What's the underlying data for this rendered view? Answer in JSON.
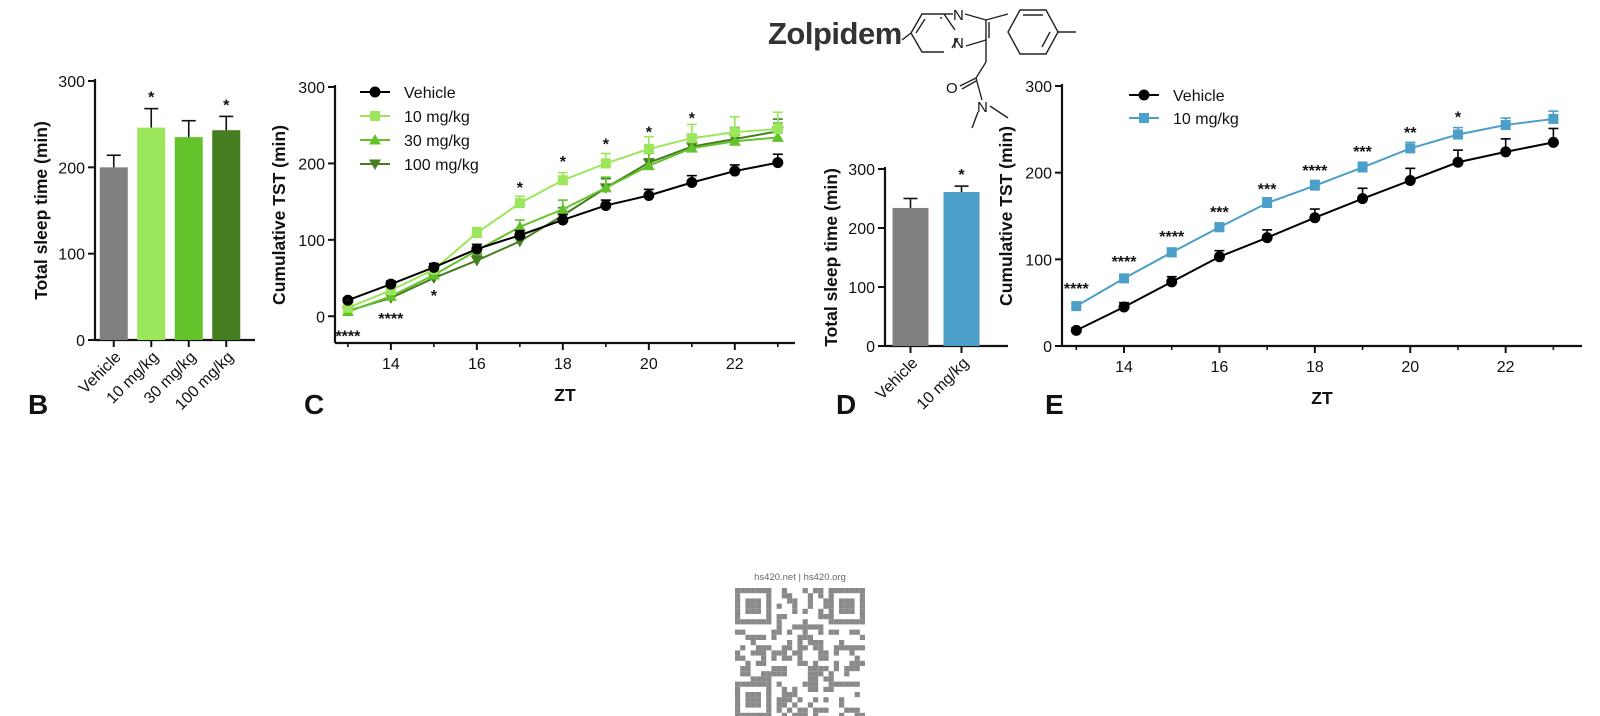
{
  "title": "Zolpidem",
  "molecule_atoms": {
    "n1": "N",
    "n2": "N",
    "o": "O",
    "n3": "N"
  },
  "watermark": "hs420.net | hs420.org",
  "colors": {
    "vehicle": "#000000",
    "vehicle_bar": "#808080",
    "g10": "#9be65a",
    "g30": "#64c22b",
    "g100": "#457e20",
    "blue": "#4b9fc8",
    "text": "#111111"
  },
  "chart_data": [
    {
      "panel": "B",
      "type": "bar",
      "ylabel": "Total sleep time (min)",
      "ylim": [
        0,
        300
      ],
      "yticks": [
        0,
        100,
        200,
        300
      ],
      "categories": [
        "Vehicle",
        "10 mg/kg",
        "30 mg/kg",
        "100 mg/kg"
      ],
      "values": [
        200,
        246,
        235,
        243
      ],
      "errors": [
        14,
        22,
        19,
        16
      ],
      "significance": [
        "",
        "*",
        "",
        "*"
      ]
    },
    {
      "panel": "C",
      "type": "line",
      "xlabel": "ZT",
      "ylabel": "Cumulative TST (min)",
      "xlim": [
        12.7,
        23.4
      ],
      "ylim": [
        -35,
        300
      ],
      "xticks": [
        14,
        16,
        18,
        20,
        22
      ],
      "yticks": [
        0,
        100,
        200,
        300
      ],
      "x": [
        13,
        14,
        15,
        16,
        17,
        18,
        19,
        20,
        21,
        22,
        23
      ],
      "series": [
        {
          "name": "Vehicle",
          "marker": "circle",
          "values": [
            21,
            42,
            64,
            88,
            106,
            126,
            145,
            158,
            175,
            190,
            201
          ],
          "errors": [
            3,
            4,
            5,
            6,
            6,
            7,
            7,
            8,
            9,
            8,
            11
          ]
        },
        {
          "name": "10 mg/kg",
          "marker": "square",
          "values": [
            11,
            34,
            61,
            109,
            148,
            178,
            200,
            219,
            233,
            241,
            245
          ],
          "errors": [
            4,
            5,
            6,
            7,
            9,
            10,
            13,
            16,
            18,
            20,
            22
          ]
        },
        {
          "name": "30 mg/kg",
          "marker": "triangle-up",
          "values": [
            6,
            26,
            54,
            86,
            117,
            140,
            168,
            197,
            220,
            229,
            234
          ],
          "errors": [
            3,
            5,
            6,
            8,
            9,
            12,
            14,
            16,
            17,
            17,
            19
          ]
        },
        {
          "name": "100 mg/kg",
          "marker": "triangle-down",
          "values": [
            7,
            24,
            50,
            73,
            98,
            132,
            168,
            201,
            222,
            232,
            242
          ],
          "errors": [
            3,
            4,
            5,
            6,
            8,
            10,
            12,
            14,
            15,
            15,
            16
          ]
        }
      ],
      "annotations": [
        {
          "x": 13,
          "y": 11,
          "text": "*",
          "series": "30 mg/kg"
        },
        {
          "x": 13,
          "y": -33,
          "text": "****",
          "series": "100 mg/kg"
        },
        {
          "x": 14,
          "y": -10,
          "text": "****",
          "series": "100 mg/kg"
        },
        {
          "x": 15,
          "y": 20,
          "text": "*",
          "series": "100 mg/kg"
        },
        {
          "x": 17,
          "y": 161,
          "text": "*",
          "series": "10 mg/kg"
        },
        {
          "x": 18,
          "y": 195,
          "text": "*",
          "series": "10 mg/kg"
        },
        {
          "x": 19,
          "y": 218,
          "text": "*",
          "series": "10 mg/kg"
        },
        {
          "x": 20,
          "y": 234,
          "text": "*",
          "series": "10 mg/kg"
        },
        {
          "x": 21,
          "y": 252,
          "text": "*",
          "series": "10 mg/kg"
        }
      ]
    },
    {
      "panel": "D",
      "type": "bar",
      "ylabel": "Total sleep time (min)",
      "ylim": [
        0,
        300
      ],
      "yticks": [
        0,
        100,
        200,
        300
      ],
      "categories": [
        "Vehicle",
        "10 mg/kg"
      ],
      "values": [
        234,
        261
      ],
      "errors": [
        16,
        10
      ],
      "significance": [
        "",
        "*"
      ]
    },
    {
      "panel": "E",
      "type": "line",
      "xlabel": "ZT",
      "ylabel": "Cumulative TST (min)",
      "xlim": [
        12.7,
        23.6
      ],
      "ylim": [
        0,
        300
      ],
      "xticks": [
        14,
        16,
        18,
        20,
        22
      ],
      "yticks": [
        0,
        100,
        200,
        300
      ],
      "x": [
        13,
        14,
        15,
        16,
        17,
        18,
        19,
        20,
        21,
        22,
        23
      ],
      "series": [
        {
          "name": "Vehicle",
          "marker": "circle",
          "values": [
            18,
            45,
            74,
            103,
            125,
            148,
            170,
            191,
            212,
            224,
            235
          ],
          "errors": [
            3,
            5,
            6,
            7,
            9,
            10,
            12,
            14,
            14,
            15,
            16
          ]
        },
        {
          "name": "10 mg/kg",
          "marker": "square",
          "values": [
            46,
            78,
            108,
            137,
            165,
            185,
            206,
            228,
            244,
            255,
            262
          ],
          "errors": [
            3,
            4,
            5,
            5,
            6,
            6,
            6,
            7,
            8,
            8,
            9
          ]
        }
      ],
      "annotations": [
        {
          "x": 13,
          "y": 60,
          "text": "****",
          "series": "10 mg/kg"
        },
        {
          "x": 14,
          "y": 91,
          "text": "****",
          "series": "10 mg/kg"
        },
        {
          "x": 15,
          "y": 120,
          "text": "****",
          "series": "10 mg/kg"
        },
        {
          "x": 16,
          "y": 148,
          "text": "***",
          "series": "10 mg/kg"
        },
        {
          "x": 17,
          "y": 175,
          "text": "***",
          "series": "10 mg/kg"
        },
        {
          "x": 18,
          "y": 196,
          "text": "****",
          "series": "10 mg/kg"
        },
        {
          "x": 19,
          "y": 218,
          "text": "***",
          "series": "10 mg/kg"
        },
        {
          "x": 20,
          "y": 240,
          "text": "**",
          "series": "10 mg/kg"
        },
        {
          "x": 21,
          "y": 258,
          "text": "*",
          "series": "10 mg/kg"
        }
      ]
    }
  ]
}
